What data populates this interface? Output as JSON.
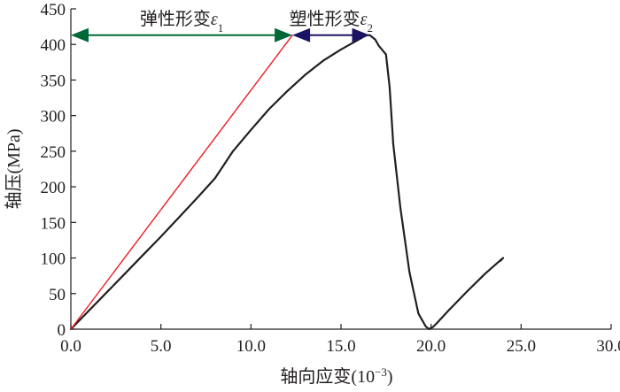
{
  "chart_data": {
    "type": "line",
    "xlabel": "轴向应变(10",
    "xlabel_exponent": "−3",
    "xlabel_close": ")",
    "ylabel": "轴压(MPa)",
    "xlim": [
      0,
      30
    ],
    "ylim": [
      0,
      450
    ],
    "x_ticks": [
      0,
      5,
      10,
      15,
      20,
      25,
      30
    ],
    "x_tick_labels": [
      "0.0",
      "5.0",
      "10.0",
      "15.0",
      "20.0",
      "25.0",
      "30.0"
    ],
    "y_ticks": [
      0,
      50,
      100,
      150,
      200,
      250,
      300,
      350,
      400,
      450
    ],
    "y_tick_labels": [
      "0",
      "50",
      "100",
      "150",
      "200",
      "250",
      "300",
      "350",
      "400",
      "450"
    ],
    "grid": false,
    "series": [
      {
        "color": "#231f20",
        "x": [
          0.0,
          1.0,
          2.0,
          3.0,
          4.0,
          5.0,
          6.0,
          7.0,
          8.0,
          9.0,
          10.0,
          11.0,
          12.0,
          13.0,
          14.0,
          15.0,
          16.0,
          16.4,
          16.6,
          16.9,
          17.1,
          17.3,
          17.5,
          17.7,
          17.9,
          18.3,
          18.8,
          19.3,
          19.7,
          19.9,
          20.1,
          20.3,
          21.0,
          22.0,
          23.0,
          23.9,
          24.0,
          23.85
        ],
        "y": [
          0,
          26,
          52,
          78,
          104,
          130,
          157,
          184,
          212,
          250,
          280,
          309,
          334,
          357,
          377,
          393,
          407,
          413,
          413,
          407,
          398,
          392,
          386,
          340,
          260,
          170,
          80,
          22,
          4,
          0,
          3,
          8,
          27,
          53,
          78,
          98,
          100,
          96
        ]
      },
      {
        "color": "#ed1c24",
        "x": [
          0.0,
          12.3
        ],
        "y": [
          0,
          413
        ]
      }
    ],
    "annotations": [
      {
        "text": "弹性形变",
        "symbol": "ε",
        "subscript": "1",
        "color": "#006837",
        "x_start": 0.0,
        "x_end": 12.3,
        "y": 413
      },
      {
        "text": "塑性形变",
        "symbol": "ε",
        "subscript": "2",
        "color": "#1b1464",
        "x_start": 12.3,
        "x_end": 16.6,
        "y": 413
      }
    ]
  }
}
